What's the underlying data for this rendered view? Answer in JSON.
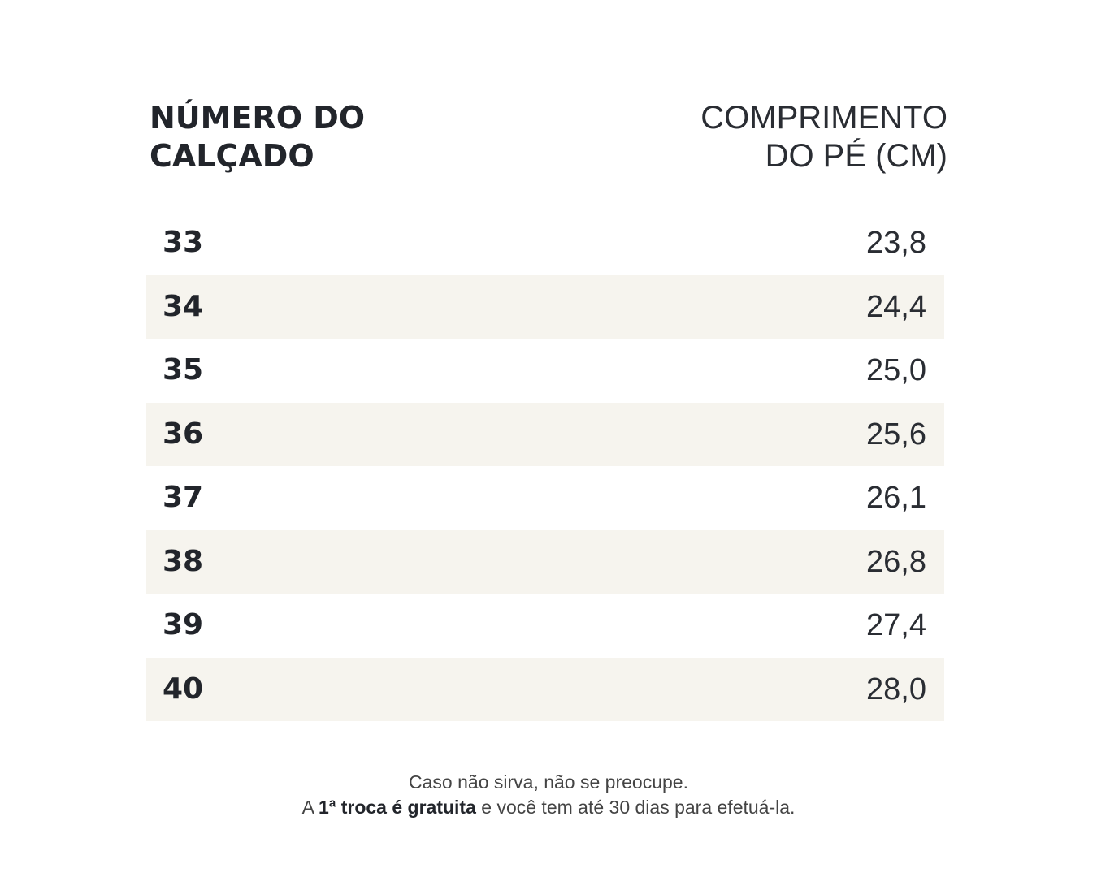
{
  "table": {
    "header": [
      [
        "NÚMERO DO",
        "CALÇADO"
      ],
      [
        "COMPRIMENTO",
        "DO PÉ (CM)"
      ]
    ],
    "rows": [
      [
        "33",
        "23,8"
      ],
      [
        "34",
        "24,4"
      ],
      [
        "35",
        "25,0"
      ],
      [
        "36",
        "25,6"
      ],
      [
        "37",
        "26,1"
      ],
      [
        "38",
        "26,8"
      ],
      [
        "39",
        "27,4"
      ],
      [
        "40",
        "28,0"
      ]
    ]
  },
  "footer": {
    "line1": "Caso não sirva, não se preocupe.",
    "line2": [
      "A",
      "1ª troca é gratuita",
      "e você tem até 30 dias para efetuá-la."
    ]
  }
}
